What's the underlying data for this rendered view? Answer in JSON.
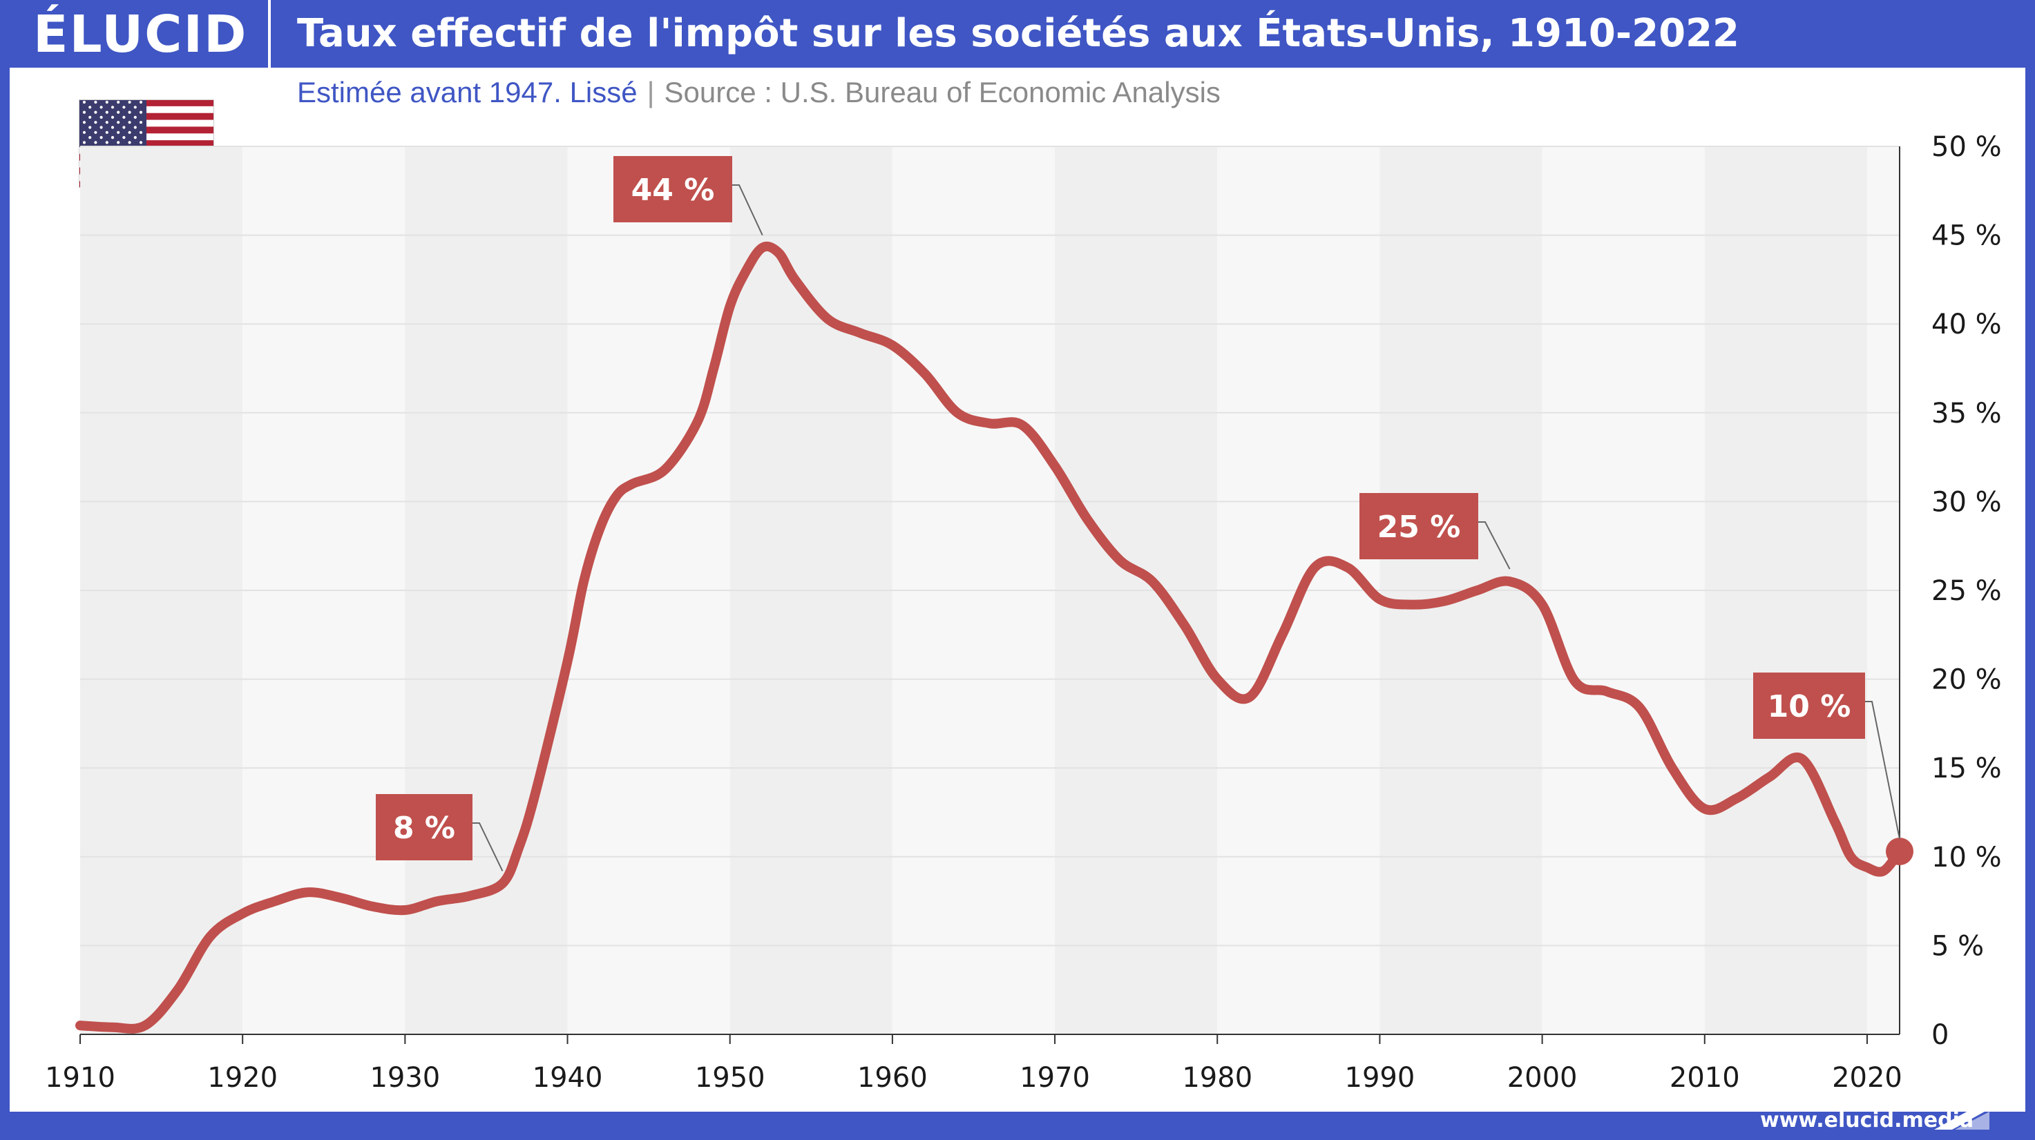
{
  "header": {
    "logo": "ÉLUCID",
    "title": "Taux effectif de l'impôt sur les sociétés aux États-Unis, 1910-2022",
    "subtitle_note": "Estimée avant 1947. Lissé",
    "subtitle_separator": "|",
    "subtitle_source": "Source : U.S. Bureau of Economic Analysis"
  },
  "footer": {
    "url": "www.elucid.media"
  },
  "colors": {
    "frame": "#3f56c4",
    "line": "#c0504d",
    "label_bg": "#c0504d",
    "band_dark": "#efefef",
    "band_light": "#f7f7f7"
  },
  "icons": {
    "flag": "us-flag-icon",
    "footer_mark": "elucid-arrow-icon"
  },
  "chart_data": {
    "type": "line",
    "title": "Taux effectif de l'impôt sur les sociétés aux États-Unis, 1910-2022",
    "subtitle": "Estimée avant 1947. Lissé | Source : U.S. Bureau of Economic Analysis",
    "xlabel": "",
    "ylabel": "",
    "xlim": [
      1910,
      2022
    ],
    "ylim": [
      0,
      50
    ],
    "y_axis_side": "right",
    "xticks": [
      1910,
      1920,
      1930,
      1940,
      1950,
      1960,
      1970,
      1980,
      1990,
      2000,
      2010,
      2020
    ],
    "yticks": [
      0,
      5,
      10,
      15,
      20,
      25,
      30,
      35,
      40,
      45,
      50
    ],
    "ytick_labels": [
      "0",
      "5 %",
      "10 %",
      "15 %",
      "20 %",
      "25 %",
      "30 %",
      "35 %",
      "40 %",
      "45 %",
      "50 %"
    ],
    "grid": true,
    "series": [
      {
        "x": [
          1910,
          1912,
          1914,
          1916,
          1918,
          1920,
          1922,
          1924,
          1926,
          1928,
          1930,
          1932,
          1934,
          1936,
          1937,
          1938,
          1940,
          1941,
          1942,
          1943,
          1944,
          1946,
          1948,
          1949,
          1950,
          1951,
          1952,
          1953,
          1954,
          1956,
          1958,
          1960,
          1962,
          1964,
          1966,
          1968,
          1970,
          1972,
          1974,
          1976,
          1978,
          1980,
          1982,
          1984,
          1986,
          1988,
          1990,
          1992,
          1994,
          1996,
          1998,
          2000,
          2002,
          2004,
          2006,
          2008,
          2010,
          2012,
          2014,
          2016,
          2018,
          2019,
          2020,
          2021,
          2022
        ],
        "y": [
          0.5,
          0.4,
          0.5,
          2.5,
          5.5,
          6.8,
          7.5,
          8.0,
          7.7,
          7.2,
          7.0,
          7.5,
          7.8,
          8.5,
          10.5,
          13.5,
          21.0,
          25.5,
          28.5,
          30.3,
          31.0,
          31.8,
          34.5,
          37.5,
          41.0,
          43.0,
          44.3,
          44.0,
          42.5,
          40.3,
          39.5,
          38.8,
          37.2,
          35.0,
          34.4,
          34.3,
          32.0,
          29.0,
          26.7,
          25.5,
          23.0,
          20.0,
          19.0,
          22.5,
          26.3,
          26.3,
          24.5,
          24.2,
          24.4,
          25.0,
          25.5,
          24.2,
          19.9,
          19.3,
          18.4,
          15.0,
          12.7,
          13.3,
          14.5,
          15.5,
          12.0,
          10.0,
          9.4,
          9.2,
          10.3
        ]
      }
    ],
    "annotations": [
      {
        "text": "8 %",
        "x": 1936,
        "y": 8.5
      },
      {
        "text": "44 %",
        "x": 1952,
        "y": 44.3
      },
      {
        "text": "25 %",
        "x": 1998,
        "y": 25.5
      },
      {
        "text": "10 %",
        "x": 2022,
        "y": 10.3
      }
    ]
  }
}
